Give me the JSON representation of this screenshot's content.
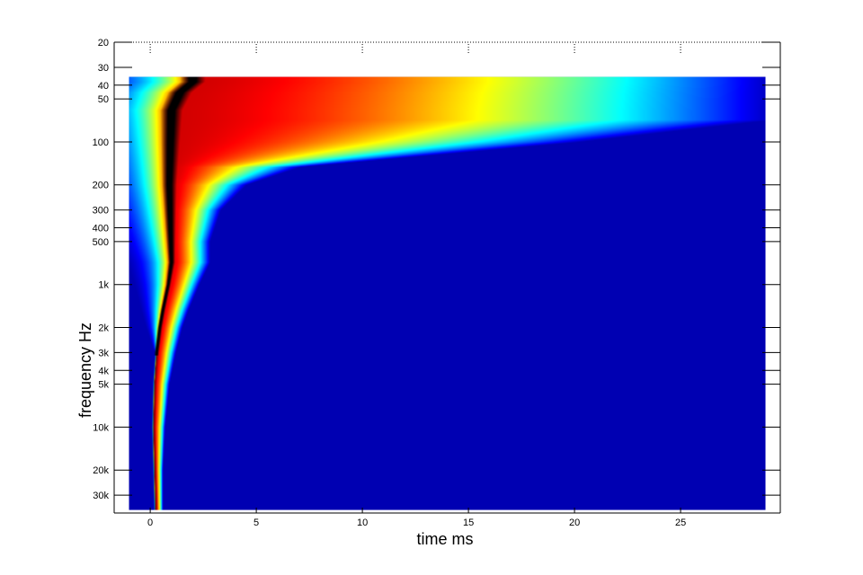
{
  "chart_data": {
    "type": "heatmap",
    "title": "",
    "xlabel": "time   ms",
    "ylabel": "frequency   Hz",
    "x_scale": "linear",
    "y_scale": "log",
    "y_direction": "reversed",
    "xlim": [
      -1.7,
      29.7
    ],
    "ylim": [
      20,
      40000
    ],
    "data_extent": {
      "x": [
        -1,
        29
      ],
      "y": [
        35,
        38000
      ]
    },
    "grid": false,
    "x_ticks": [
      0,
      5,
      10,
      15,
      20,
      25
    ],
    "x_tick_labels": [
      "0",
      "5",
      "10",
      "15",
      "20",
      "25"
    ],
    "y_ticks": [
      20,
      30,
      40,
      50,
      100,
      200,
      300,
      400,
      500,
      1000,
      2000,
      3000,
      4000,
      5000,
      10000,
      20000,
      30000
    ],
    "y_tick_labels": [
      "20",
      "30",
      "40",
      "50",
      "100",
      "200",
      "300",
      "400",
      "500",
      "1k",
      "2k",
      "3k",
      "4k",
      "5k",
      "10k",
      "20k",
      "30k"
    ],
    "colormap": "jet",
    "colormap_stops": [
      "#00008F",
      "#0000FF",
      "#00FFFF",
      "#FFFF00",
      "#FF0000",
      "#800000"
    ],
    "ridge_color": "#000000",
    "background_color": "#00007F",
    "impulse_ridge": [
      {
        "f": 38000,
        "t": 0.25
      },
      {
        "f": 20000,
        "t": 0.2
      },
      {
        "f": 10000,
        "t": 0.15
      },
      {
        "f": 5000,
        "t": 0.2
      },
      {
        "f": 3000,
        "t": 0.3
      },
      {
        "f": 2000,
        "t": 0.45
      },
      {
        "f": 1500,
        "t": 0.6
      },
      {
        "f": 1000,
        "t": 0.85
      },
      {
        "f": 700,
        "t": 1.0
      },
      {
        "f": 400,
        "t": 0.95
      },
      {
        "f": 200,
        "t": 0.9
      },
      {
        "f": 100,
        "t": 0.95
      },
      {
        "f": 60,
        "t": 1.0
      },
      {
        "f": 45,
        "t": 1.4
      },
      {
        "f": 38,
        "t": 2.0
      }
    ],
    "decay_front": [
      {
        "f": 35,
        "t": 29
      },
      {
        "f": 50,
        "t": 29
      },
      {
        "f": 70,
        "t": 29
      },
      {
        "f": 100,
        "t": 20
      },
      {
        "f": 150,
        "t": 7
      },
      {
        "f": 200,
        "t": 4.5
      },
      {
        "f": 300,
        "t": 3.3
      },
      {
        "f": 500,
        "t": 2.8
      },
      {
        "f": 700,
        "t": 2.8
      },
      {
        "f": 1000,
        "t": 2.3
      },
      {
        "f": 1500,
        "t": 1.8
      },
      {
        "f": 2000,
        "t": 1.5
      },
      {
        "f": 3000,
        "t": 1.2
      },
      {
        "f": 5000,
        "t": 0.9
      },
      {
        "f": 10000,
        "t": 0.7
      },
      {
        "f": 20000,
        "t": 0.6
      },
      {
        "f": 38000,
        "t": 0.6
      }
    ]
  }
}
